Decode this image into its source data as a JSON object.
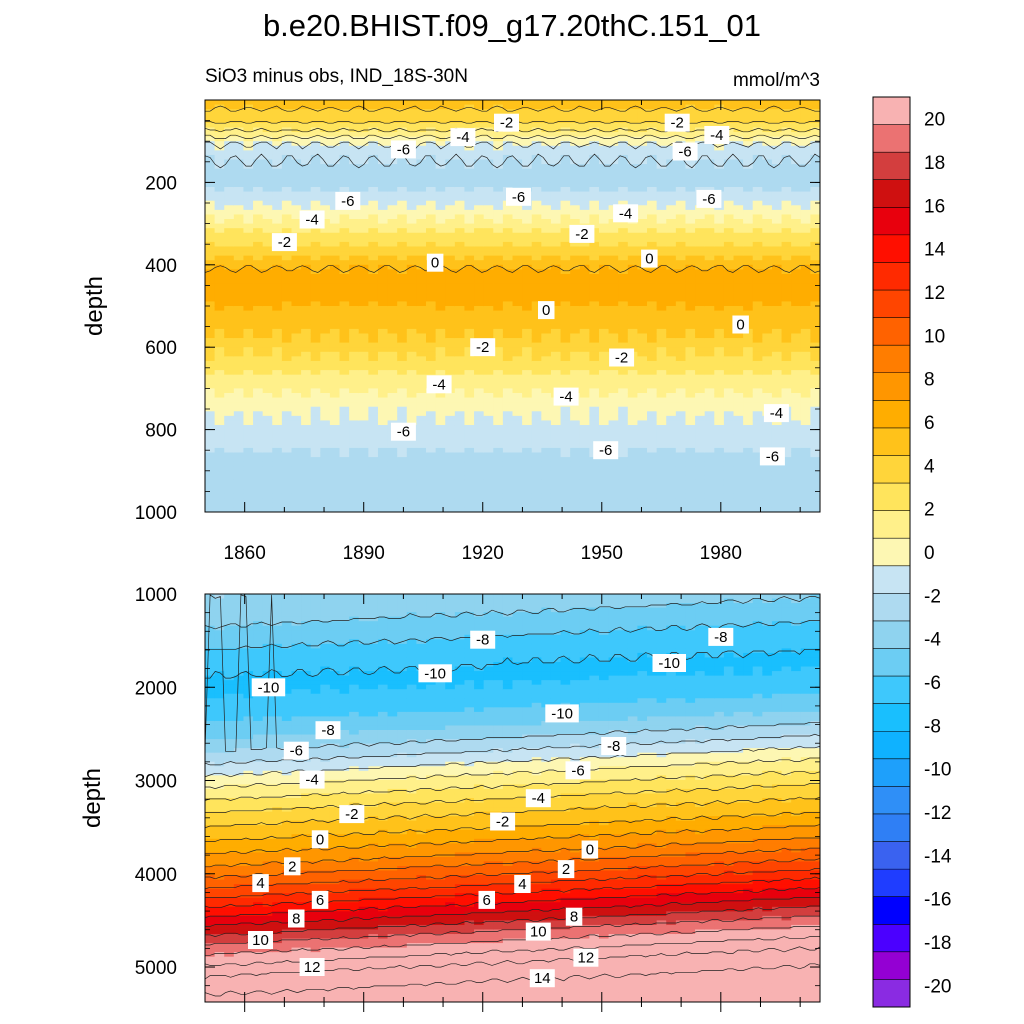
{
  "title": "b.e20.BHIST.f09_g17.20thC.151_01",
  "subtitle_left": "SiO3 minus obs, IND_18S-30N",
  "subtitle_right": "mmol/m^3",
  "colors": {
    "levels": [
      "#8a2be2",
      "#9400d3",
      "#4b00ff",
      "#0000ff",
      "#1f3dff",
      "#3a62f0",
      "#2f7ff5",
      "#2f8ff7",
      "#1ea0fb",
      "#0fb2ff",
      "#19bffe",
      "#3ec8fc",
      "#6ccdf3",
      "#8fd3ef",
      "#aedaf0",
      "#c7e4f3",
      "#fdf7b3",
      "#fff08a",
      "#ffe45c",
      "#ffd53a",
      "#ffc21a",
      "#ffad00",
      "#ff9600",
      "#ff7d00",
      "#ff6200",
      "#ff4500",
      "#ff2a00",
      "#ff0f00",
      "#e8000d",
      "#cf1010",
      "#d33e3e",
      "#eb7272",
      "#f8b2b2"
    ],
    "isoline": "#222222"
  },
  "chart_data": [
    {
      "type": "heatmap",
      "panel": "upper",
      "title": "",
      "xlabel": "",
      "ylabel": "depth",
      "x_ticks": [
        "1860",
        "1890",
        "1920",
        "1950",
        "1980"
      ],
      "y_ticks": [
        "200",
        "400",
        "600",
        "800",
        "1000"
      ],
      "xlim": [
        1850,
        2005
      ],
      "ylim": [
        0,
        1000
      ],
      "y_reversed": true,
      "contour_interval": 1,
      "profile": {
        "depth": [
          10,
          60,
          110,
          170,
          220,
          270,
          320,
          370,
          420,
          470,
          520,
          570,
          620,
          670,
          720,
          770,
          820,
          870,
          920,
          1000
        ],
        "value": [
          -0.6,
          -2.2,
          -5.2,
          -6.4,
          -6.0,
          -4.6,
          -3.0,
          -1.4,
          0.4,
          0.5,
          -0.3,
          -1.0,
          -2.0,
          -3.2,
          -4.2,
          -5.0,
          -5.6,
          -6.3,
          -6.6,
          -6.8
        ]
      },
      "contour_labels": [
        {
          "text": "-2",
          "x": 1926,
          "y": 55
        },
        {
          "text": "-2",
          "x": 1969,
          "y": 55
        },
        {
          "text": "-4",
          "x": 1915,
          "y": 90
        },
        {
          "text": "-4",
          "x": 1979,
          "y": 85
        },
        {
          "text": "-6",
          "x": 1900,
          "y": 120
        },
        {
          "text": "-6",
          "x": 1971,
          "y": 125
        },
        {
          "text": "-6",
          "x": 1886,
          "y": 245
        },
        {
          "text": "-6",
          "x": 1929,
          "y": 235
        },
        {
          "text": "-6",
          "x": 1977,
          "y": 240
        },
        {
          "text": "-4",
          "x": 1877,
          "y": 290
        },
        {
          "text": "-4",
          "x": 1956,
          "y": 275
        },
        {
          "text": "-2",
          "x": 1870,
          "y": 345
        },
        {
          "text": "-2",
          "x": 1945,
          "y": 325
        },
        {
          "text": "0",
          "x": 1908,
          "y": 395
        },
        {
          "text": "0",
          "x": 1962,
          "y": 385
        },
        {
          "text": "0",
          "x": 1936,
          "y": 510
        },
        {
          "text": "0",
          "x": 1985,
          "y": 545
        },
        {
          "text": "-2",
          "x": 1920,
          "y": 600
        },
        {
          "text": "-2",
          "x": 1955,
          "y": 625
        },
        {
          "text": "-4",
          "x": 1909,
          "y": 690
        },
        {
          "text": "-4",
          "x": 1941,
          "y": 720
        },
        {
          "text": "-4",
          "x": 1994,
          "y": 760
        },
        {
          "text": "-6",
          "x": 1900,
          "y": 805
        },
        {
          "text": "-6",
          "x": 1951,
          "y": 850
        },
        {
          "text": "-6",
          "x": 1993,
          "y": 865
        }
      ]
    },
    {
      "type": "heatmap",
      "panel": "lower",
      "title": "",
      "xlabel": "",
      "ylabel": "depth",
      "x_ticks": [],
      "y_ticks": [
        "1000",
        "2000",
        "3000",
        "4000",
        "5000"
      ],
      "xlim": [
        1850,
        2005
      ],
      "ylim": [
        1000,
        5375
      ],
      "y_reversed": true,
      "contour_interval": 1,
      "profile": {
        "depth": [
          1000,
          1200,
          1500,
          1800,
          2000,
          2200,
          2500,
          2800,
          3100,
          3400,
          3650,
          3900,
          4200,
          4500,
          4800,
          5100,
          5375
        ],
        "value": [
          -7.0,
          -7.4,
          -8.6,
          -9.8,
          -10.2,
          -9.8,
          -8.4,
          -6.2,
          -3.8,
          -1.6,
          0.0,
          1.8,
          4.4,
          7.4,
          10.4,
          13.0,
          14.4
        ],
        "slope_per_century": -200
      },
      "contour_labels": [
        {
          "text": "-8",
          "x": 1920,
          "y": 1490
        },
        {
          "text": "-8",
          "x": 1980,
          "y": 1460
        },
        {
          "text": "-10",
          "x": 1908,
          "y": 1850
        },
        {
          "text": "-10",
          "x": 1967,
          "y": 1740
        },
        {
          "text": "-10",
          "x": 1866,
          "y": 2000
        },
        {
          "text": "-10",
          "x": 1940,
          "y": 2280
        },
        {
          "text": "-8",
          "x": 1881,
          "y": 2460
        },
        {
          "text": "-8",
          "x": 1953,
          "y": 2630
        },
        {
          "text": "-6",
          "x": 1873,
          "y": 2680
        },
        {
          "text": "-6",
          "x": 1944,
          "y": 2890
        },
        {
          "text": "-4",
          "x": 1877,
          "y": 2990
        },
        {
          "text": "-4",
          "x": 1934,
          "y": 3190
        },
        {
          "text": "-2",
          "x": 1887,
          "y": 3360
        },
        {
          "text": "-2",
          "x": 1925,
          "y": 3440
        },
        {
          "text": "0",
          "x": 1879,
          "y": 3630
        },
        {
          "text": "0",
          "x": 1947,
          "y": 3740
        },
        {
          "text": "2",
          "x": 1872,
          "y": 3920
        },
        {
          "text": "2",
          "x": 1941,
          "y": 3950
        },
        {
          "text": "4",
          "x": 1864,
          "y": 4100
        },
        {
          "text": "4",
          "x": 1930,
          "y": 4110
        },
        {
          "text": "6",
          "x": 1879,
          "y": 4280
        },
        {
          "text": "6",
          "x": 1921,
          "y": 4280
        },
        {
          "text": "8",
          "x": 1873,
          "y": 4480
        },
        {
          "text": "8",
          "x": 1943,
          "y": 4460
        },
        {
          "text": "10",
          "x": 1864,
          "y": 4710
        },
        {
          "text": "10",
          "x": 1934,
          "y": 4620
        },
        {
          "text": "12",
          "x": 1877,
          "y": 5000
        },
        {
          "text": "12",
          "x": 1946,
          "y": 4900
        },
        {
          "text": "14",
          "x": 1935,
          "y": 5120
        }
      ]
    },
    {
      "type": "colorbar",
      "min": -21,
      "max": 21,
      "step": 1,
      "label_values": [
        "-20",
        "-18",
        "-16",
        "-14",
        "-12",
        "-10",
        "-8",
        "-6",
        "-4",
        "-2",
        "0",
        "2",
        "4",
        "6",
        "8",
        "10",
        "12",
        "14",
        "16",
        "18",
        "20"
      ]
    }
  ]
}
